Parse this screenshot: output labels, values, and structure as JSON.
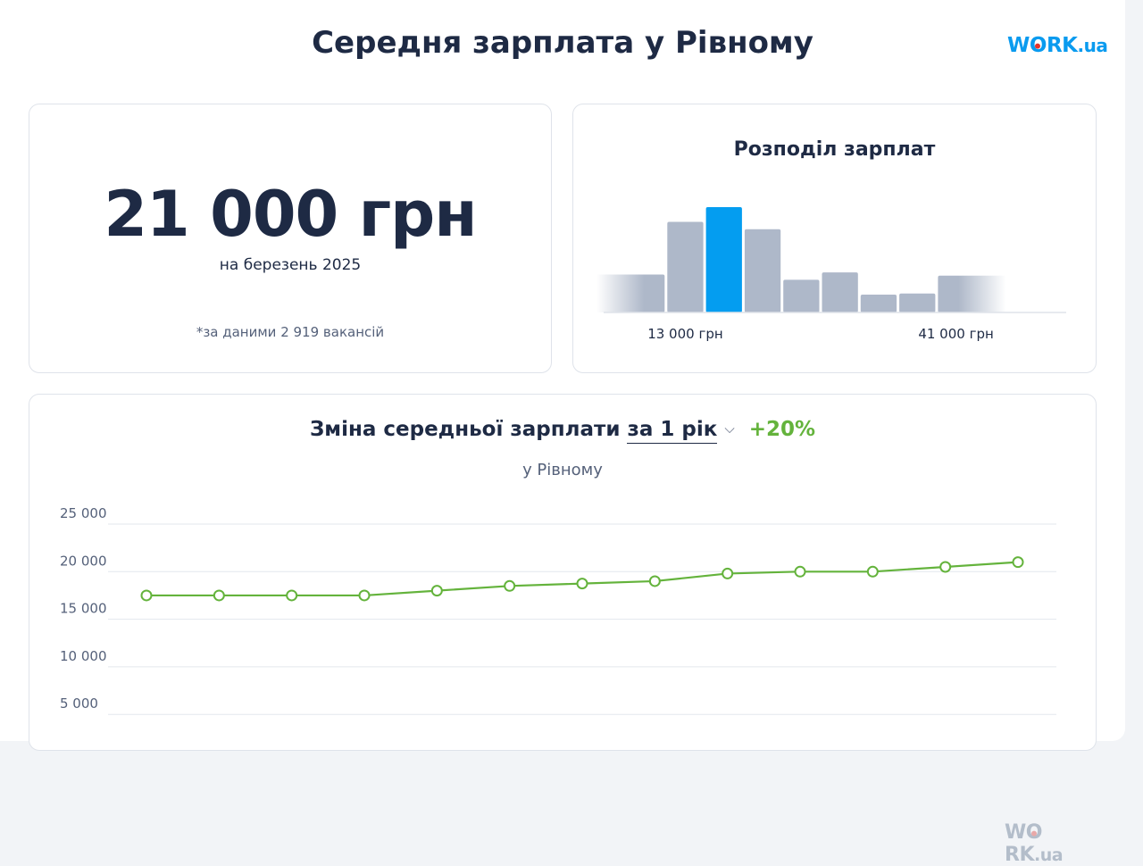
{
  "header": {
    "title": "Середня зарплата у Рівному"
  },
  "logo": {
    "main": "W",
    "o": "O",
    "rest": "RK",
    "suffix": ".ua",
    "accent": "#0a9bef",
    "dot": "#e5332a"
  },
  "summary": {
    "value": "21 000 грн",
    "period": "на березень 2025",
    "note": "*за даними 2 919 вакансій"
  },
  "chart_data": [
    {
      "type": "bar",
      "title": "Розподіл зарплат",
      "values": [
        0.36,
        0.86,
        1.0,
        0.79,
        0.31,
        0.38,
        0.17,
        0.18,
        0.35
      ],
      "highlight_index": 2,
      "colors": {
        "bar": "#aeb8c9",
        "highlight": "#049df0"
      },
      "tick_labels": [
        {
          "label": "13 000 грн",
          "bin": 1.0
        },
        {
          "label": "41 000 грн",
          "bin": 8.0
        }
      ]
    },
    {
      "type": "line",
      "title": "Зміна середньої зарплати",
      "period_label": "за 1 рік",
      "change": "+20%",
      "subtitle": "у Рівному",
      "values": [
        17500,
        17500,
        17500,
        17500,
        18000,
        18500,
        18750,
        19000,
        19800,
        20000,
        20000,
        20500,
        21000
      ],
      "ylim": [
        0,
        25000
      ],
      "yticks": [
        {
          "value": 25000,
          "label": "25 000"
        },
        {
          "value": 20000,
          "label": "20 000"
        },
        {
          "value": 15000,
          "label": "15 000"
        },
        {
          "value": 10000,
          "label": "10 000"
        },
        {
          "value": 5000,
          "label": "5 000"
        }
      ],
      "grid": true,
      "colors": {
        "line": "#64b33c",
        "grid": "#e3e7ee"
      }
    }
  ]
}
